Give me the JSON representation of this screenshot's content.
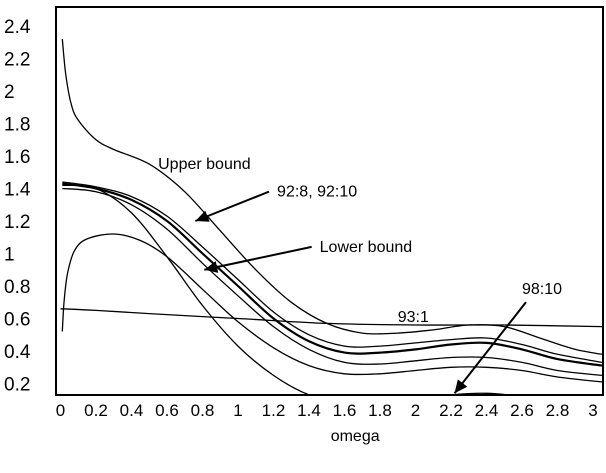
{
  "chart_data": {
    "type": "line",
    "title": "",
    "xlabel": "omega",
    "ylabel": "",
    "xlim": [
      0,
      3.05
    ],
    "ylim": [
      0,
      2.5
    ],
    "grid": false,
    "xticks": [
      {
        "v": 0,
        "label": "0"
      },
      {
        "v": 0.2,
        "label": "0.2"
      },
      {
        "v": 0.4,
        "label": "0.4"
      },
      {
        "v": 0.6,
        "label": "0.6"
      },
      {
        "v": 0.8,
        "label": "0.8"
      },
      {
        "v": 1.0,
        "label": "1"
      },
      {
        "v": 1.2,
        "label": "1.2"
      },
      {
        "v": 1.4,
        "label": "1.4"
      },
      {
        "v": 1.6,
        "label": "1.6"
      },
      {
        "v": 1.8,
        "label": "1.8"
      },
      {
        "v": 2.0,
        "label": "2"
      },
      {
        "v": 2.2,
        "label": "2.2"
      },
      {
        "v": 2.4,
        "label": "2.4"
      },
      {
        "v": 2.6,
        "label": "2.6"
      },
      {
        "v": 2.8,
        "label": "2.8"
      },
      {
        "v": 3.0,
        "label": "3"
      }
    ],
    "yticks": [
      {
        "v": 0.2,
        "label": "0.2"
      },
      {
        "v": 0.4,
        "label": "0.4"
      },
      {
        "v": 0.6,
        "label": "0.6"
      },
      {
        "v": 0.8,
        "label": "0.8"
      },
      {
        "v": 1.0,
        "label": "1"
      },
      {
        "v": 1.2,
        "label": "1.2"
      },
      {
        "v": 1.4,
        "label": "1.4"
      },
      {
        "v": 1.6,
        "label": "1.6"
      },
      {
        "v": 1.8,
        "label": "1.8"
      },
      {
        "v": 2.0,
        "label": "2"
      },
      {
        "v": 2.2,
        "label": "2.2"
      },
      {
        "v": 2.4,
        "label": "2.4"
      }
    ],
    "series": [
      {
        "name": "Upper bound",
        "x": [
          0.01,
          0.03,
          0.06,
          0.1,
          0.2,
          0.3,
          0.5,
          0.7,
          0.9,
          1.1,
          1.3,
          1.5,
          1.7,
          1.9,
          2.1,
          2.3,
          2.5,
          2.7,
          2.9,
          3.05
        ],
        "y": [
          2.32,
          2.1,
          1.92,
          1.82,
          1.7,
          1.64,
          1.55,
          1.38,
          1.14,
          0.9,
          0.7,
          0.57,
          0.51,
          0.51,
          0.53,
          0.56,
          0.55,
          0.48,
          0.41,
          0.38
        ]
      },
      {
        "name": "92:8, 92:10",
        "x": [
          0.01,
          0.2,
          0.4,
          0.6,
          0.8,
          1.0,
          1.2,
          1.4,
          1.6,
          1.8,
          2.0,
          2.2,
          2.4,
          2.6,
          2.8,
          3.05
        ],
        "y": [
          1.43,
          1.4,
          1.33,
          1.2,
          1.0,
          0.8,
          0.6,
          0.46,
          0.39,
          0.39,
          0.41,
          0.44,
          0.45,
          0.41,
          0.35,
          0.31
        ]
      },
      {
        "name": "",
        "x": [
          0.01,
          0.2,
          0.4,
          0.6,
          0.8,
          1.0,
          1.2,
          1.4,
          1.6,
          1.8,
          2.0,
          2.2,
          2.4,
          2.6,
          2.8,
          3.05
        ],
        "y": [
          1.44,
          1.41,
          1.35,
          1.23,
          1.04,
          0.84,
          0.64,
          0.5,
          0.43,
          0.43,
          0.45,
          0.47,
          0.48,
          0.44,
          0.38,
          0.33
        ]
      },
      {
        "name": "",
        "x": [
          0.01,
          0.2,
          0.4,
          0.6,
          0.8,
          1.0,
          1.2,
          1.4,
          1.6,
          1.8,
          2.0,
          2.2,
          2.4,
          2.6,
          2.8,
          3.05
        ],
        "y": [
          1.4,
          1.38,
          1.3,
          1.15,
          0.94,
          0.74,
          0.55,
          0.41,
          0.33,
          0.32,
          0.34,
          0.36,
          0.36,
          0.33,
          0.28,
          0.25
        ]
      },
      {
        "name": "98:10",
        "x": [
          0.01,
          0.2,
          0.4,
          0.6,
          0.8,
          1.0,
          1.2,
          1.4,
          1.6,
          1.8,
          2.0,
          2.2,
          2.4,
          2.6,
          2.8,
          3.05
        ],
        "y": [
          1.42,
          1.4,
          1.25,
          0.98,
          0.68,
          0.43,
          0.25,
          0.13,
          0.08,
          0.08,
          0.1,
          0.13,
          0.14,
          0.12,
          0.09,
          0.07
        ]
      },
      {
        "name": "Lower bound",
        "x": [
          0.01,
          0.02,
          0.04,
          0.08,
          0.15,
          0.3,
          0.45,
          0.6,
          0.8,
          1.0,
          1.2,
          1.4,
          1.6,
          1.8,
          2.0,
          2.2,
          2.4,
          2.6,
          2.8,
          3.05
        ],
        "y": [
          0.52,
          0.7,
          0.88,
          1.02,
          1.09,
          1.12,
          1.08,
          0.98,
          0.78,
          0.58,
          0.42,
          0.31,
          0.26,
          0.26,
          0.28,
          0.3,
          0.3,
          0.28,
          0.24,
          0.21
        ]
      },
      {
        "name": "93:1",
        "x": [
          0.0,
          0.2,
          0.5,
          1.0,
          1.5,
          2.0,
          2.5,
          3.05
        ],
        "y": [
          0.66,
          0.65,
          0.63,
          0.6,
          0.57,
          0.56,
          0.56,
          0.55
        ]
      }
    ],
    "annotations": [
      {
        "text": "Upper bound",
        "x": 0.55,
        "y": 1.52,
        "arrow": false
      },
      {
        "text": "92:8, 92:10",
        "x": 1.22,
        "y": 1.35,
        "arrow": true,
        "arrow_to": [
          0.76,
          1.2
        ]
      },
      {
        "text": "Lower bound",
        "x": 1.46,
        "y": 1.01,
        "arrow": true,
        "arrow_to": [
          0.81,
          0.9
        ]
      },
      {
        "text": "93:1",
        "x": 1.9,
        "y": 0.58,
        "arrow": false
      },
      {
        "text": "98:10",
        "x": 2.6,
        "y": 0.75,
        "arrow": true,
        "arrow_to": [
          2.22,
          0.14
        ]
      }
    ]
  }
}
